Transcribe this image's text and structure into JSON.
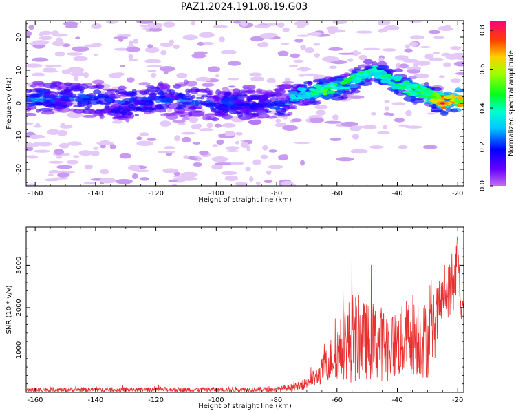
{
  "title": "PAZ1.2024.191.08.19.G03",
  "chart_data": [
    {
      "type": "heatmap",
      "xlabel": "Height of straight line (km)",
      "ylabel": "Frequency (Hz)",
      "xlim": [
        -163,
        -18
      ],
      "ylim": [
        -25,
        25
      ],
      "xticks": [
        -160,
        -140,
        -120,
        -100,
        -80,
        -60,
        -40,
        -20
      ],
      "yticks": [
        -20,
        -10,
        0,
        10,
        20
      ],
      "colorbar": {
        "label": "Normalized spectral amplitude",
        "range": [
          0.0,
          0.85
        ],
        "ticks": [
          0.0,
          0.2,
          0.4,
          0.6,
          0.8
        ],
        "colormap": "gist_rainbow_r (violet to red)"
      },
      "ridge": [
        {
          "x": -162,
          "f": 1,
          "amp": 0.3
        },
        {
          "x": -150,
          "f": 2,
          "amp": 0.3
        },
        {
          "x": -140,
          "f": 1,
          "amp": 0.28
        },
        {
          "x": -130,
          "f": 0,
          "amp": 0.28
        },
        {
          "x": -120,
          "f": 1,
          "amp": 0.3
        },
        {
          "x": -110,
          "f": 1,
          "amp": 0.28
        },
        {
          "x": -100,
          "f": 0,
          "amp": 0.26
        },
        {
          "x": -90,
          "f": 0,
          "amp": 0.25
        },
        {
          "x": -80,
          "f": -1,
          "amp": 0.25
        },
        {
          "x": -72,
          "f": 3,
          "amp": 0.4
        },
        {
          "x": -65,
          "f": 4,
          "amp": 0.55
        },
        {
          "x": -58,
          "f": 5,
          "amp": 0.5
        },
        {
          "x": -52,
          "f": 8,
          "amp": 0.45
        },
        {
          "x": -48,
          "f": 10,
          "amp": 0.4
        },
        {
          "x": -42,
          "f": 7,
          "amp": 0.45
        },
        {
          "x": -35,
          "f": 4,
          "amp": 0.5
        },
        {
          "x": -30,
          "f": 3,
          "amp": 0.55
        },
        {
          "x": -25,
          "f": 0,
          "amp": 0.8
        },
        {
          "x": -20,
          "f": 1,
          "amp": 0.7
        }
      ]
    },
    {
      "type": "line",
      "xlabel": "Height of straight line (km)",
      "ylabel": "SNR (10 * v/v)",
      "xlim": [
        -163,
        -18
      ],
      "ylim": [
        0,
        3900
      ],
      "xticks": [
        -160,
        -140,
        -120,
        -100,
        -80,
        -60,
        -40,
        -20
      ],
      "yticks": [
        1000,
        2000,
        3000
      ],
      "color": "#e83030",
      "envelope": [
        {
          "x": -163,
          "base": 60,
          "noise": 50
        },
        {
          "x": -80,
          "base": 70,
          "noise": 60
        },
        {
          "x": -72,
          "base": 150,
          "noise": 100
        },
        {
          "x": -66,
          "base": 400,
          "noise": 250
        },
        {
          "x": -62,
          "base": 800,
          "noise": 500
        },
        {
          "x": -58,
          "base": 1100,
          "noise": 800
        },
        {
          "x": -55,
          "base": 1300,
          "noise": 1100
        },
        {
          "x": -50,
          "base": 1200,
          "noise": 900
        },
        {
          "x": -45,
          "base": 1150,
          "noise": 900
        },
        {
          "x": -40,
          "base": 1100,
          "noise": 800
        },
        {
          "x": -35,
          "base": 1400,
          "noise": 1000
        },
        {
          "x": -30,
          "base": 1200,
          "noise": 900
        },
        {
          "x": -27,
          "base": 1700,
          "noise": 800
        },
        {
          "x": -25,
          "base": 2300,
          "noise": 500
        },
        {
          "x": -21,
          "base": 2500,
          "noise": 800
        },
        {
          "x": -20,
          "base": 3500,
          "noise": 400
        },
        {
          "x": -19,
          "base": 2000,
          "noise": 300
        },
        {
          "x": -18,
          "base": 2000,
          "noise": 200
        }
      ]
    }
  ]
}
